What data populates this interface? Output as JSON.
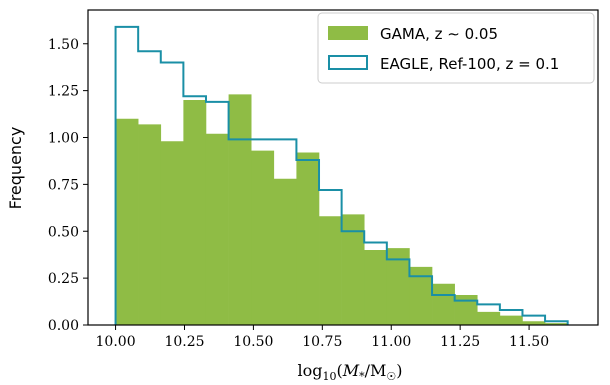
{
  "chart_data": {
    "type": "histogram",
    "xlabel": "log10(M*/M☉)",
    "ylabel": "Frequency",
    "xlim": [
      9.9,
      11.75
    ],
    "ylim": [
      0,
      1.68
    ],
    "xticks": [
      10.0,
      10.25,
      10.5,
      10.75,
      11.0,
      11.25,
      11.5
    ],
    "xtick_labels": [
      "10.00",
      "10.25",
      "10.50",
      "10.75",
      "11.00",
      "11.25",
      "11.50"
    ],
    "yticks": [
      0.0,
      0.25,
      0.5,
      0.75,
      1.0,
      1.25,
      1.5
    ],
    "ytick_labels": [
      "0.00",
      "0.25",
      "0.50",
      "0.75",
      "1.00",
      "1.25",
      "1.50"
    ],
    "legend_position": "top-right",
    "bin_edges": [
      10.0,
      10.082,
      10.164,
      10.246,
      10.328,
      10.41,
      10.492,
      10.574,
      10.656,
      10.738,
      10.82,
      10.902,
      10.984,
      11.066,
      11.148,
      11.23,
      11.312,
      11.394,
      11.476,
      11.558,
      11.64
    ],
    "series": [
      {
        "name": "GAMA, z ∼ 0.05",
        "style": "filled",
        "color": "#8fbc45",
        "values": [
          1.1,
          1.07,
          0.98,
          1.2,
          1.02,
          1.23,
          0.93,
          0.78,
          0.92,
          0.58,
          0.59,
          0.4,
          0.41,
          0.31,
          0.22,
          0.16,
          0.07,
          0.05,
          0.02,
          0.01
        ]
      },
      {
        "name": "EAGLE, Ref-100, z = 0.1",
        "style": "step",
        "color": "#1a8fa6",
        "values": [
          1.59,
          1.46,
          1.4,
          1.22,
          1.19,
          0.99,
          0.99,
          0.99,
          0.88,
          0.72,
          0.5,
          0.44,
          0.35,
          0.26,
          0.16,
          0.13,
          0.11,
          0.08,
          0.05,
          0.02
        ]
      }
    ]
  }
}
